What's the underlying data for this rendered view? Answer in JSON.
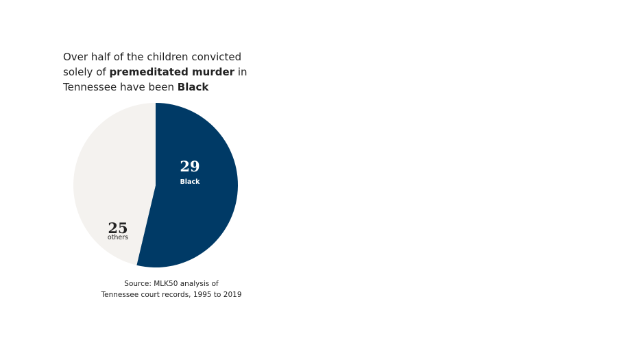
{
  "chart_data": {
    "type": "pie",
    "title": [
      "Over half of the children convicted solely of ",
      "premeditated murder",
      " in Tennessee have been ",
      "Black"
    ],
    "categories": [
      "Black",
      "others"
    ],
    "values": [
      29,
      25
    ],
    "colors": [
      "#003a66",
      "#f4f2ef"
    ],
    "label_colors": [
      "#ffffff",
      "#222222"
    ],
    "source": [
      "Source: MLK50 analysis of",
      "Tennessee court records, 1995 to 2019"
    ]
  }
}
